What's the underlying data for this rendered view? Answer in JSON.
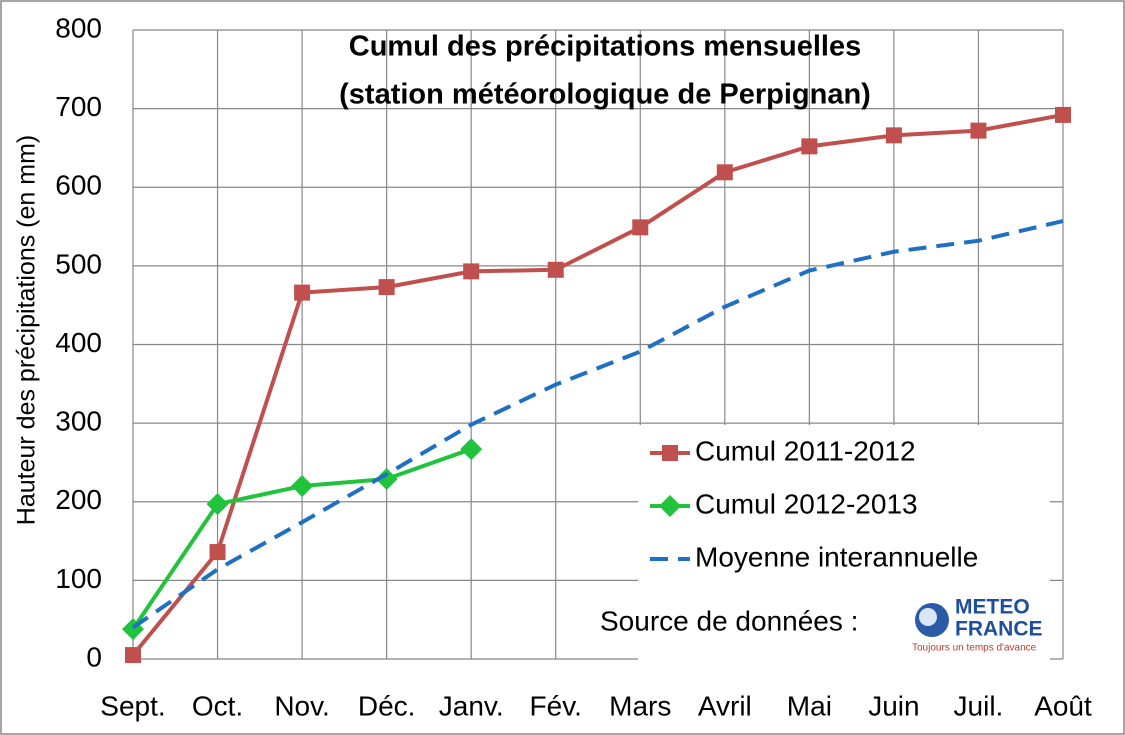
{
  "chart_data": {
    "type": "line",
    "title": [
      "Cumul des précipitations mensuelles",
      "(station météorologique de Perpignan)"
    ],
    "y_label": "Hauteur des précipitations (en mm)",
    "categories": [
      "Sept.",
      "Oct.",
      "Nov.",
      "Déc.",
      "Janv.",
      "Fév.",
      "Mars",
      "Avril",
      "Mai",
      "Juin",
      "Juil.",
      "Août"
    ],
    "series": [
      {
        "name": "Cumul 2011-2012",
        "color": "#c0504d",
        "marker": "square",
        "dash": false,
        "values": [
          5,
          136,
          466,
          473,
          493,
          495,
          549,
          619,
          652,
          666,
          672,
          692
        ]
      },
      {
        "name": "Cumul 2012-2013",
        "color": "#22c33c",
        "marker": "diamond",
        "dash": false,
        "values": [
          38,
          197,
          220,
          229,
          267,
          null,
          null,
          null,
          null,
          null,
          null,
          null
        ]
      },
      {
        "name": "Moyenne interannuelle",
        "color": "#1f6fc5",
        "marker": null,
        "dash": true,
        "values": [
          40,
          114,
          174,
          235,
          298,
          349,
          391,
          448,
          494,
          518,
          532,
          557
        ]
      }
    ],
    "ylim": [
      0,
      800
    ],
    "yticks": [
      0,
      100,
      200,
      300,
      400,
      500,
      600,
      700,
      800
    ],
    "grid": true,
    "legend": "lower right",
    "source_label": "Source de données :",
    "logo_text": [
      "METEO",
      "FRANCE"
    ],
    "logo_tagline": "Toujours un temps d'avance"
  }
}
